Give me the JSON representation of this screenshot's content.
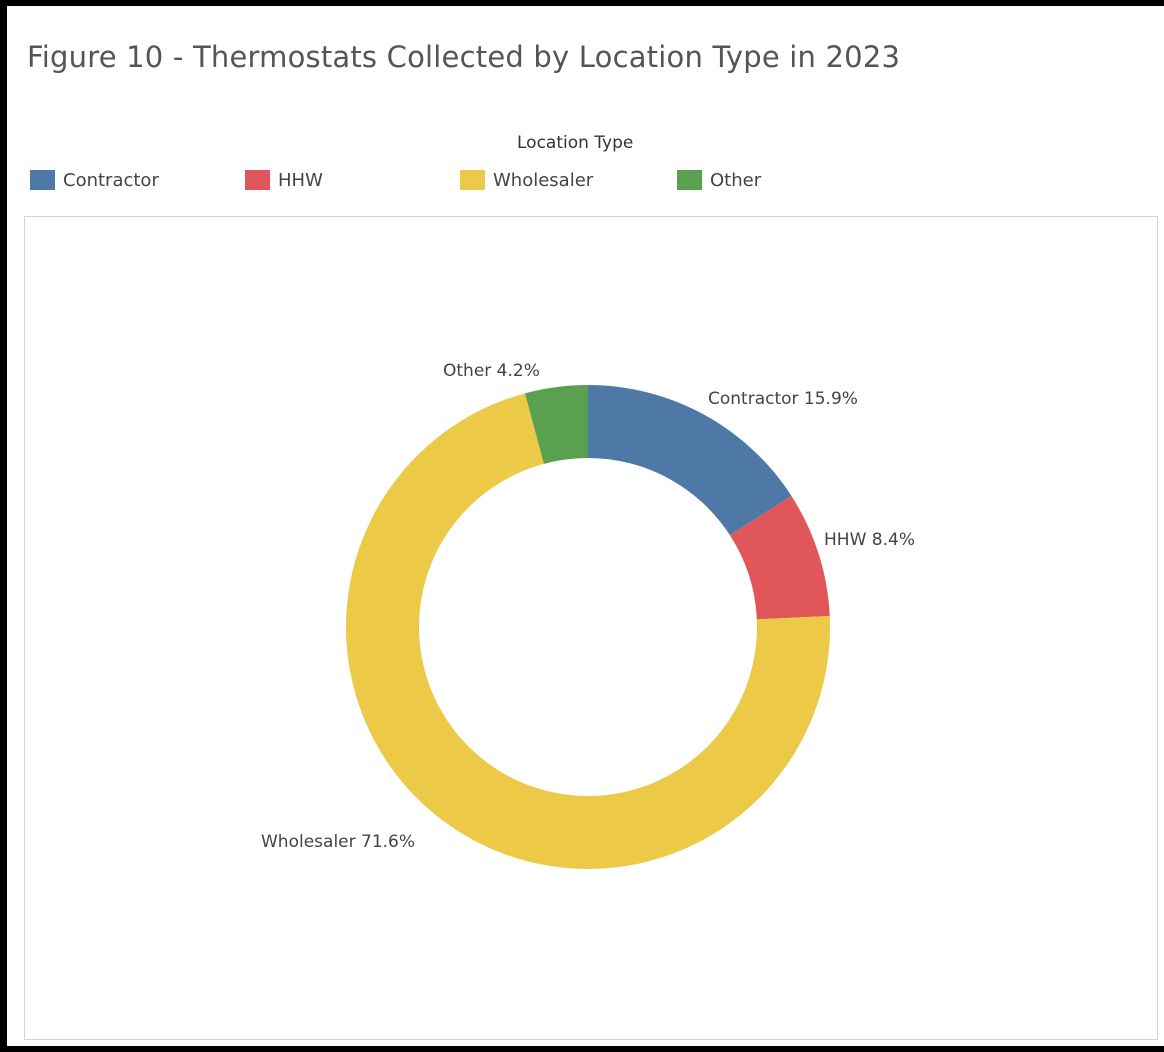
{
  "chart_data": {
    "type": "pie",
    "title": "Figure 10 - Thermostats Collected by Location Type in 2023",
    "legend_title": "Location Type",
    "legend_position": "top",
    "donut": true,
    "series": [
      {
        "name": "Contractor",
        "value": 15.9,
        "label": "Contractor 15.9%",
        "color": "#4e79a7"
      },
      {
        "name": "HHW",
        "value": 8.4,
        "label": "HHW 8.4%",
        "color": "#e15759"
      },
      {
        "name": "Wholesaler",
        "value": 71.6,
        "label": "Wholesaler 71.6%",
        "color": "#edc948"
      },
      {
        "name": "Other",
        "value": 4.2,
        "label": "Other 4.2%",
        "color": "#59a14f"
      }
    ]
  }
}
